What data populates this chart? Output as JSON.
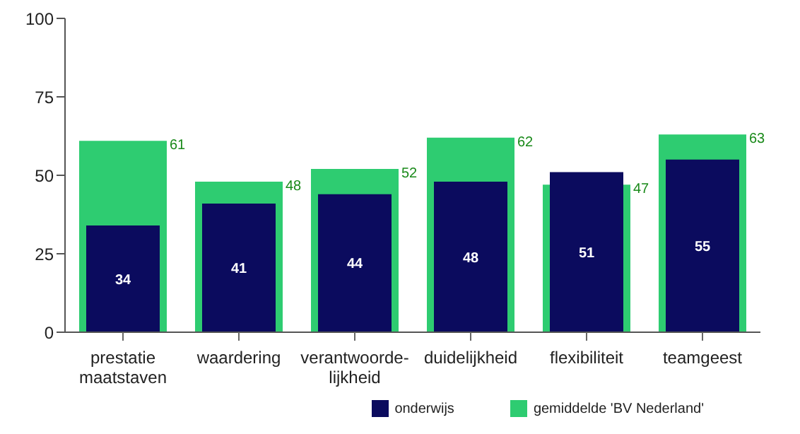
{
  "chart_data": {
    "type": "bar",
    "categories": [
      "prestatie\nmaatstaven",
      "waardering",
      "verantwoorde-\nlijkheid",
      "duidelijkheid",
      "flexibiliteit",
      "teamgeest"
    ],
    "series": [
      {
        "name": "gemiddelde 'BV Nederland'",
        "color": "#2ecc71",
        "values": [
          61,
          48,
          52,
          62,
          47,
          63
        ]
      },
      {
        "name": "onderwijs",
        "color": "#0b0b5e",
        "values": [
          34,
          41,
          44,
          48,
          51,
          55
        ]
      }
    ],
    "ylim": [
      0,
      100
    ],
    "yticks": [
      0,
      25,
      50,
      75,
      100
    ],
    "legend": "bottom right",
    "data_labels": true
  }
}
